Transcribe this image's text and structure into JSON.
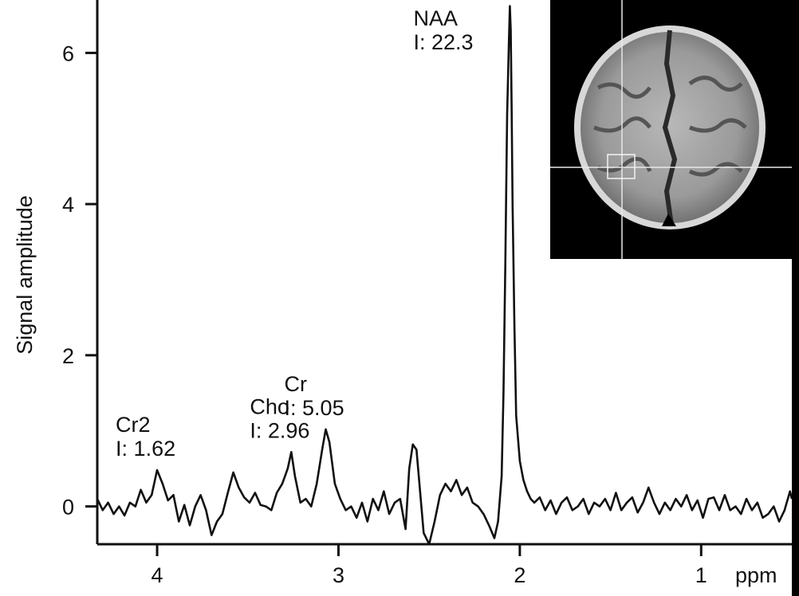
{
  "chart_data": {
    "type": "line",
    "ylabel": "Signal amplitude",
    "x_unit": "ppm",
    "x_reversed": true,
    "xlim": [
      4.33,
      0.5
    ],
    "ylim": [
      -0.5,
      6.7
    ],
    "x_ticks": [
      {
        "value": 4,
        "label": "4"
      },
      {
        "value": 3,
        "label": "3"
      },
      {
        "value": 2,
        "label": "2"
      },
      {
        "value": 1,
        "label": "1"
      }
    ],
    "y_ticks": [
      {
        "value": 0,
        "label": "0"
      },
      {
        "value": 2,
        "label": "2"
      },
      {
        "value": 4,
        "label": "4"
      },
      {
        "value": 6,
        "label": "6"
      }
    ],
    "grid": false,
    "series": [
      {
        "color": "#111111",
        "points": [
          [
            4.33,
            0.1
          ],
          [
            4.3,
            -0.05
          ],
          [
            4.27,
            0.05
          ],
          [
            4.24,
            -0.1
          ],
          [
            4.21,
            0.0
          ],
          [
            4.18,
            -0.12
          ],
          [
            4.15,
            0.05
          ],
          [
            4.12,
            0.0
          ],
          [
            4.09,
            0.22
          ],
          [
            4.06,
            0.05
          ],
          [
            4.03,
            0.15
          ],
          [
            4.0,
            0.48
          ],
          [
            3.97,
            0.3
          ],
          [
            3.94,
            0.08
          ],
          [
            3.91,
            0.15
          ],
          [
            3.88,
            -0.2
          ],
          [
            3.85,
            0.02
          ],
          [
            3.82,
            -0.25
          ],
          [
            3.79,
            0.0
          ],
          [
            3.76,
            0.15
          ],
          [
            3.73,
            -0.05
          ],
          [
            3.7,
            -0.38
          ],
          [
            3.67,
            -0.2
          ],
          [
            3.64,
            -0.1
          ],
          [
            3.61,
            0.18
          ],
          [
            3.58,
            0.45
          ],
          [
            3.55,
            0.25
          ],
          [
            3.52,
            0.12
          ],
          [
            3.49,
            0.05
          ],
          [
            3.46,
            0.18
          ],
          [
            3.43,
            0.02
          ],
          [
            3.4,
            0.0
          ],
          [
            3.37,
            -0.05
          ],
          [
            3.34,
            0.18
          ],
          [
            3.31,
            0.3
          ],
          [
            3.28,
            0.5
          ],
          [
            3.26,
            0.72
          ],
          [
            3.24,
            0.4
          ],
          [
            3.21,
            0.05
          ],
          [
            3.18,
            0.1
          ],
          [
            3.15,
            0.0
          ],
          [
            3.12,
            0.3
          ],
          [
            3.09,
            0.75
          ],
          [
            3.07,
            1.02
          ],
          [
            3.05,
            0.85
          ],
          [
            3.02,
            0.3
          ],
          [
            2.99,
            0.1
          ],
          [
            2.96,
            -0.05
          ],
          [
            2.93,
            0.0
          ],
          [
            2.9,
            -0.15
          ],
          [
            2.87,
            0.05
          ],
          [
            2.84,
            -0.2
          ],
          [
            2.81,
            0.1
          ],
          [
            2.78,
            -0.05
          ],
          [
            2.75,
            0.2
          ],
          [
            2.72,
            -0.1
          ],
          [
            2.69,
            0.05
          ],
          [
            2.66,
            0.1
          ],
          [
            2.63,
            -0.3
          ],
          [
            2.61,
            0.5
          ],
          [
            2.59,
            0.82
          ],
          [
            2.57,
            0.75
          ],
          [
            2.55,
            0.2
          ],
          [
            2.53,
            -0.35
          ],
          [
            2.5,
            -0.5
          ],
          [
            2.47,
            -0.2
          ],
          [
            2.44,
            0.15
          ],
          [
            2.41,
            0.3
          ],
          [
            2.38,
            0.2
          ],
          [
            2.35,
            0.35
          ],
          [
            2.32,
            0.15
          ],
          [
            2.29,
            0.25
          ],
          [
            2.26,
            0.05
          ],
          [
            2.23,
            0.0
          ],
          [
            2.2,
            -0.1
          ],
          [
            2.17,
            -0.25
          ],
          [
            2.14,
            -0.42
          ],
          [
            2.12,
            -0.2
          ],
          [
            2.1,
            0.4
          ],
          [
            2.09,
            1.5
          ],
          [
            2.08,
            3.2
          ],
          [
            2.07,
            5.2
          ],
          [
            2.06,
            6.15
          ],
          [
            2.055,
            6.62
          ],
          [
            2.05,
            6.3
          ],
          [
            2.045,
            5.3
          ],
          [
            2.04,
            4.0
          ],
          [
            2.03,
            2.4
          ],
          [
            2.02,
            1.2
          ],
          [
            2.0,
            0.6
          ],
          [
            1.98,
            0.35
          ],
          [
            1.96,
            0.2
          ],
          [
            1.94,
            0.1
          ],
          [
            1.92,
            0.05
          ],
          [
            1.89,
            0.12
          ],
          [
            1.86,
            -0.05
          ],
          [
            1.83,
            0.08
          ],
          [
            1.8,
            -0.1
          ],
          [
            1.77,
            0.05
          ],
          [
            1.74,
            0.12
          ],
          [
            1.71,
            -0.05
          ],
          [
            1.68,
            0.0
          ],
          [
            1.65,
            0.1
          ],
          [
            1.62,
            -0.1
          ],
          [
            1.59,
            0.05
          ],
          [
            1.56,
            0.0
          ],
          [
            1.53,
            0.1
          ],
          [
            1.5,
            -0.05
          ],
          [
            1.47,
            0.18
          ],
          [
            1.44,
            -0.05
          ],
          [
            1.41,
            0.05
          ],
          [
            1.38,
            0.12
          ],
          [
            1.35,
            -0.08
          ],
          [
            1.32,
            0.05
          ],
          [
            1.29,
            0.25
          ],
          [
            1.26,
            0.05
          ],
          [
            1.23,
            -0.1
          ],
          [
            1.2,
            0.05
          ],
          [
            1.17,
            -0.05
          ],
          [
            1.14,
            0.1
          ],
          [
            1.11,
            0.0
          ],
          [
            1.08,
            0.15
          ],
          [
            1.05,
            -0.05
          ],
          [
            1.02,
            0.08
          ],
          [
            0.99,
            -0.15
          ],
          [
            0.96,
            0.1
          ],
          [
            0.93,
            0.12
          ],
          [
            0.9,
            -0.05
          ],
          [
            0.87,
            0.15
          ],
          [
            0.84,
            -0.05
          ],
          [
            0.81,
            0.0
          ],
          [
            0.78,
            -0.1
          ],
          [
            0.75,
            0.1
          ],
          [
            0.72,
            -0.05
          ],
          [
            0.69,
            0.05
          ],
          [
            0.66,
            -0.15
          ],
          [
            0.63,
            -0.1
          ],
          [
            0.6,
            0.0
          ],
          [
            0.57,
            -0.2
          ],
          [
            0.54,
            -0.05
          ],
          [
            0.51,
            0.2
          ],
          [
            0.5,
            0.1
          ]
        ]
      }
    ],
    "annotations": [
      {
        "name": "NAA",
        "line1": "NAA",
        "line2": "I: 22.3",
        "x": 2.05,
        "y": 6.62
      },
      {
        "name": "Cr",
        "line1": "Cr",
        "line2": "I: 5.05",
        "x": 3.07,
        "y": 1.02
      },
      {
        "name": "Cho",
        "line1": "Cho",
        "line2": "I: 2.96",
        "x": 3.26,
        "y": 0.72
      },
      {
        "name": "Cr2",
        "line1": "Cr2",
        "line2": "I: 1.62",
        "x": 4.0,
        "y": 0.48
      }
    ]
  },
  "inset": {
    "description_icon": "brain-mri-axial-scan"
  }
}
